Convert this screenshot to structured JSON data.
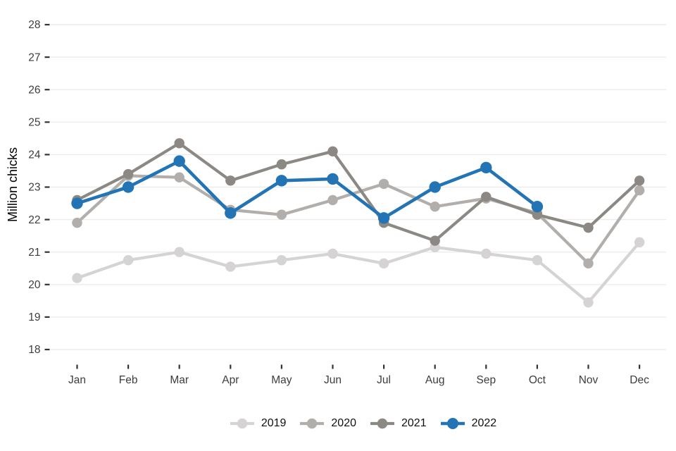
{
  "chart_data": {
    "type": "line",
    "title": "",
    "xlabel": "",
    "ylabel": "Million chicks",
    "categories": [
      "Jan",
      "Feb",
      "Mar",
      "Apr",
      "May",
      "Jun",
      "Jul",
      "Aug",
      "Sep",
      "Oct",
      "Nov",
      "Dec"
    ],
    "y_ticks": [
      18,
      19,
      20,
      21,
      22,
      23,
      24,
      25,
      26,
      27,
      28
    ],
    "ylim": [
      18,
      28
    ],
    "grid": "horizontal-only",
    "legend_position": "bottom-center",
    "series": [
      {
        "name": "2019",
        "color": "#d5d3d3",
        "values": [
          20.2,
          20.75,
          21.0,
          20.55,
          20.75,
          20.95,
          20.65,
          21.15,
          20.95,
          20.75,
          19.45,
          21.3
        ]
      },
      {
        "name": "2020",
        "color": "#b1aeac",
        "values": [
          21.9,
          23.35,
          23.3,
          22.3,
          22.15,
          22.6,
          23.1,
          22.4,
          22.65,
          22.2,
          20.65,
          22.9
        ]
      },
      {
        "name": "2021",
        "color": "#8c8984",
        "values": [
          22.6,
          23.4,
          24.35,
          23.2,
          23.7,
          24.1,
          21.9,
          21.35,
          22.7,
          22.15,
          21.75,
          23.2
        ]
      },
      {
        "name": "2022",
        "color": "#2274b5",
        "values": [
          22.5,
          23.0,
          23.8,
          22.2,
          23.2,
          23.25,
          22.05,
          23.0,
          23.6,
          22.4
        ]
      }
    ]
  },
  "style_colors": {
    "background": "#ffffff",
    "gridline": "#ececec",
    "tick_mark": "#333333",
    "tick_label": "#3d3d3d",
    "axis_title": "#000000",
    "legend_text": "#101010",
    "accent_blue": "#2274b5"
  }
}
